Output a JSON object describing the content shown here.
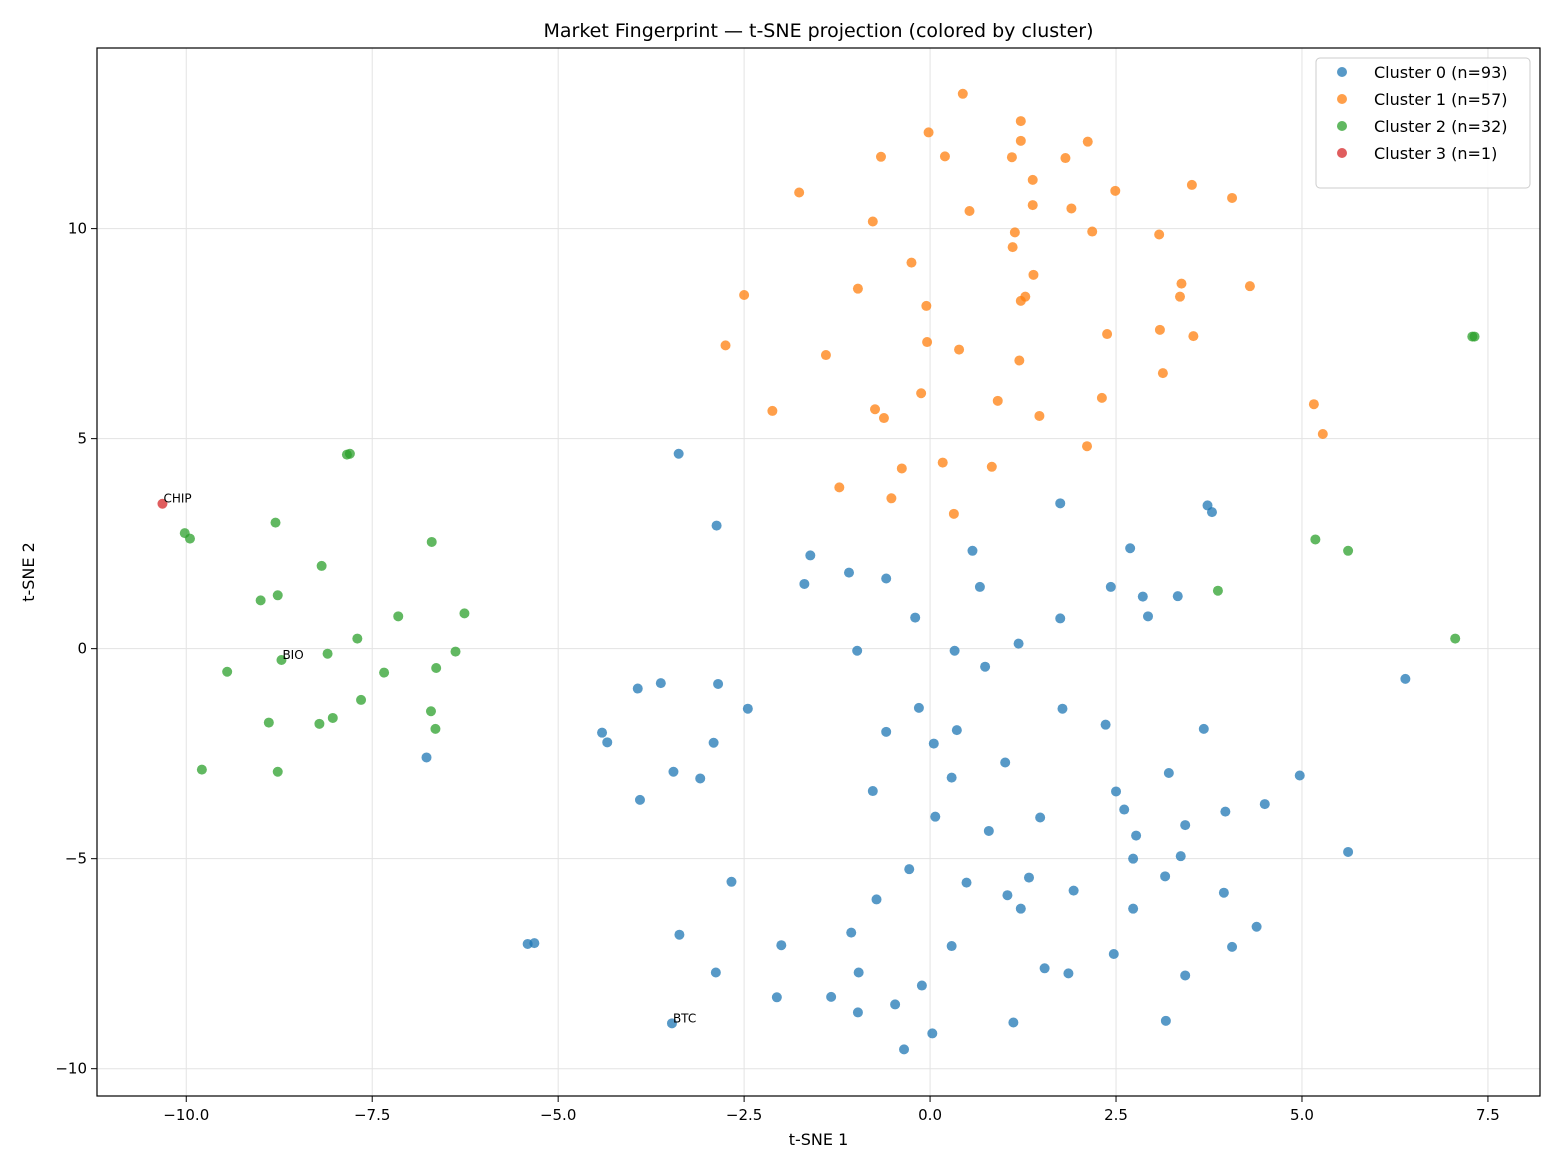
{
  "chart_data": {
    "type": "scatter",
    "title": "Market Fingerprint — t-SNE projection (colored by cluster)",
    "xlabel": "t-SNE 1",
    "ylabel": "t-SNE 2",
    "xlim": [
      -11.2,
      8.2
    ],
    "ylim": [
      -10.65,
      14.3
    ],
    "xticks": [
      -10.0,
      -7.5,
      -5.0,
      -2.5,
      0.0,
      2.5,
      5.0,
      7.5
    ],
    "xtick_labels": [
      "−10.0",
      "−7.5",
      "−5.0",
      "−2.5",
      "0.0",
      "2.5",
      "5.0",
      "7.5"
    ],
    "yticks": [
      -10,
      -5,
      0,
      5,
      10
    ],
    "ytick_labels": [
      "−10",
      "−5",
      "0",
      "5",
      "10"
    ],
    "grid": true,
    "legend_position": "top-right",
    "series": [
      {
        "name": "Cluster 0 (n=93)",
        "color": "#1f77b4",
        "points": [
          [
            -3.38,
            4.64
          ],
          [
            -2.87,
            2.93
          ],
          [
            -1.61,
            2.22
          ],
          [
            -1.69,
            1.54
          ],
          [
            -1.09,
            1.81
          ],
          [
            -0.59,
            1.67
          ],
          [
            -0.2,
            0.74
          ],
          [
            0.57,
            2.33
          ],
          [
            0.67,
            1.47
          ],
          [
            1.75,
            3.46
          ],
          [
            3.73,
            3.41
          ],
          [
            3.79,
            3.25
          ],
          [
            2.69,
            2.39
          ],
          [
            2.43,
            1.47
          ],
          [
            2.86,
            1.24
          ],
          [
            3.33,
            1.25
          ],
          [
            2.93,
            0.77
          ],
          [
            1.75,
            0.72
          ],
          [
            1.19,
            0.12
          ],
          [
            -0.98,
            -0.05
          ],
          [
            0.33,
            -0.05
          ],
          [
            0.74,
            -0.43
          ],
          [
            6.39,
            -0.72
          ],
          [
            -3.93,
            -0.95
          ],
          [
            -3.62,
            -0.82
          ],
          [
            -2.85,
            -0.84
          ],
          [
            -2.45,
            -1.43
          ],
          [
            -0.15,
            -1.41
          ],
          [
            1.78,
            -1.43
          ],
          [
            2.36,
            -1.81
          ],
          [
            3.68,
            -1.91
          ],
          [
            -4.41,
            -2.0
          ],
          [
            -4.34,
            -2.23
          ],
          [
            -2.91,
            -2.24
          ],
          [
            -0.59,
            -1.98
          ],
          [
            0.05,
            -2.26
          ],
          [
            0.36,
            -1.94
          ],
          [
            -6.77,
            -2.59
          ],
          [
            -3.45,
            -2.93
          ],
          [
            -3.09,
            -3.09
          ],
          [
            1.01,
            -2.71
          ],
          [
            3.21,
            -2.96
          ],
          [
            4.97,
            -3.02
          ],
          [
            0.29,
            -3.07
          ],
          [
            -3.9,
            -3.6
          ],
          [
            -0.77,
            -3.39
          ],
          [
            2.5,
            -3.4
          ],
          [
            4.5,
            -3.7
          ],
          [
            2.61,
            -3.83
          ],
          [
            3.97,
            -3.88
          ],
          [
            0.07,
            -4.0
          ],
          [
            1.48,
            -4.02
          ],
          [
            3.43,
            -4.2
          ],
          [
            0.79,
            -4.34
          ],
          [
            2.77,
            -4.45
          ],
          [
            5.62,
            -4.84
          ],
          [
            2.73,
            -5.0
          ],
          [
            3.37,
            -4.94
          ],
          [
            -0.28,
            -5.25
          ],
          [
            1.33,
            -5.45
          ],
          [
            3.16,
            -5.42
          ],
          [
            -2.67,
            -5.55
          ],
          [
            0.49,
            -5.57
          ],
          [
            1.93,
            -5.76
          ],
          [
            1.04,
            -5.87
          ],
          [
            3.95,
            -5.81
          ],
          [
            -0.72,
            -5.97
          ],
          [
            1.22,
            -6.19
          ],
          [
            2.73,
            -6.19
          ],
          [
            4.39,
            -6.62
          ],
          [
            -5.41,
            -7.03
          ],
          [
            -5.32,
            -7.01
          ],
          [
            -3.37,
            -6.81
          ],
          [
            -1.06,
            -6.76
          ],
          [
            -2.0,
            -7.06
          ],
          [
            0.29,
            -7.08
          ],
          [
            4.06,
            -7.1
          ],
          [
            2.47,
            -7.27
          ],
          [
            1.54,
            -7.61
          ],
          [
            -2.88,
            -7.71
          ],
          [
            -0.96,
            -7.71
          ],
          [
            1.86,
            -7.73
          ],
          [
            3.43,
            -7.78
          ],
          [
            -0.11,
            -8.02
          ],
          [
            -2.06,
            -8.3
          ],
          [
            -1.33,
            -8.29
          ],
          [
            -0.47,
            -8.47
          ],
          [
            -0.97,
            -8.66
          ],
          [
            -3.47,
            -8.92
          ],
          [
            1.12,
            -8.9
          ],
          [
            3.17,
            -8.86
          ],
          [
            0.03,
            -9.16
          ],
          [
            -0.35,
            -9.54
          ]
        ]
      },
      {
        "name": "Cluster 1 (n=57)",
        "color": "#ff7f0e",
        "points": [
          [
            0.44,
            13.21
          ],
          [
            1.22,
            12.56
          ],
          [
            -0.02,
            12.29
          ],
          [
            1.22,
            12.09
          ],
          [
            2.12,
            12.07
          ],
          [
            -0.66,
            11.71
          ],
          [
            0.2,
            11.72
          ],
          [
            1.1,
            11.7
          ],
          [
            1.82,
            11.68
          ],
          [
            1.38,
            11.16
          ],
          [
            3.52,
            11.04
          ],
          [
            -1.76,
            10.86
          ],
          [
            2.49,
            10.9
          ],
          [
            4.06,
            10.73
          ],
          [
            1.38,
            10.56
          ],
          [
            1.9,
            10.48
          ],
          [
            0.53,
            10.42
          ],
          [
            -0.77,
            10.17
          ],
          [
            1.14,
            9.91
          ],
          [
            2.18,
            9.93
          ],
          [
            3.08,
            9.86
          ],
          [
            1.11,
            9.56
          ],
          [
            -0.25,
            9.19
          ],
          [
            1.39,
            8.9
          ],
          [
            3.38,
            8.69
          ],
          [
            4.3,
            8.63
          ],
          [
            -0.97,
            8.57
          ],
          [
            -2.5,
            8.42
          ],
          [
            3.36,
            8.38
          ],
          [
            1.28,
            8.38
          ],
          [
            1.22,
            8.28
          ],
          [
            -0.05,
            8.16
          ],
          [
            3.09,
            7.59
          ],
          [
            2.38,
            7.49
          ],
          [
            3.54,
            7.44
          ],
          [
            -0.04,
            7.3
          ],
          [
            -2.75,
            7.22
          ],
          [
            0.39,
            7.12
          ],
          [
            -1.4,
            6.99
          ],
          [
            1.2,
            6.86
          ],
          [
            3.13,
            6.56
          ],
          [
            -0.12,
            6.08
          ],
          [
            0.91,
            5.9
          ],
          [
            2.31,
            5.97
          ],
          [
            5.16,
            5.82
          ],
          [
            -0.74,
            5.7
          ],
          [
            -2.12,
            5.66
          ],
          [
            1.47,
            5.54
          ],
          [
            -0.62,
            5.49
          ],
          [
            5.28,
            5.11
          ],
          [
            2.11,
            4.82
          ],
          [
            0.17,
            4.43
          ],
          [
            -0.38,
            4.29
          ],
          [
            0.83,
            4.33
          ],
          [
            -1.22,
            3.84
          ],
          [
            -0.52,
            3.58
          ],
          [
            0.32,
            3.21
          ]
        ]
      },
      {
        "name": "Cluster 2 (n=32)",
        "color": "#2ca02c",
        "points": [
          [
            -7.84,
            4.62
          ],
          [
            -7.8,
            4.64
          ],
          [
            7.29,
            7.43
          ],
          [
            7.32,
            7.43
          ],
          [
            -8.8,
            3.0
          ],
          [
            -10.02,
            2.75
          ],
          [
            -9.95,
            2.62
          ],
          [
            -6.7,
            2.54
          ],
          [
            5.18,
            2.6
          ],
          [
            5.62,
            2.33
          ],
          [
            -8.18,
            1.97
          ],
          [
            3.87,
            1.38
          ],
          [
            -8.77,
            1.27
          ],
          [
            -9.0,
            1.15
          ],
          [
            -6.26,
            0.84
          ],
          [
            -7.15,
            0.77
          ],
          [
            -7.7,
            0.24
          ],
          [
            7.06,
            0.24
          ],
          [
            -8.1,
            -0.12
          ],
          [
            -6.38,
            -0.07
          ],
          [
            -8.72,
            -0.27
          ],
          [
            -6.64,
            -0.46
          ],
          [
            -9.45,
            -0.55
          ],
          [
            -7.34,
            -0.57
          ],
          [
            -7.65,
            -1.22
          ],
          [
            -6.71,
            -1.49
          ],
          [
            -8.03,
            -1.65
          ],
          [
            -8.89,
            -1.76
          ],
          [
            -8.21,
            -1.79
          ],
          [
            -6.65,
            -1.91
          ],
          [
            -9.79,
            -2.88
          ],
          [
            -8.77,
            -2.93
          ]
        ]
      },
      {
        "name": "Cluster 3 (n=1)",
        "color": "#d62728",
        "points": [
          [
            -10.32,
            3.45
          ]
        ]
      }
    ],
    "annotations": [
      {
        "text": "CHIP",
        "x": -10.32,
        "y": 3.45
      },
      {
        "text": "BIO",
        "x": -8.72,
        "y": -0.27
      },
      {
        "text": "BTC",
        "x": -3.47,
        "y": -8.92
      }
    ]
  }
}
